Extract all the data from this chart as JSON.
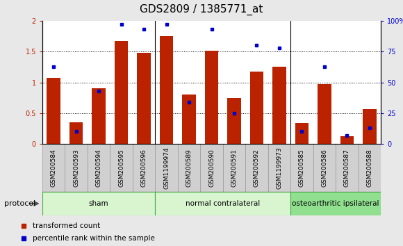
{
  "title": "GDS2809 / 1385771_at",
  "samples": [
    "GSM200584",
    "GSM200593",
    "GSM200594",
    "GSM200595",
    "GSM200596",
    "GSM1199974",
    "GSM200589",
    "GSM200590",
    "GSM200591",
    "GSM200592",
    "GSM1199973",
    "GSM200585",
    "GSM200586",
    "GSM200587",
    "GSM200588"
  ],
  "red_bars": [
    1.08,
    0.35,
    0.9,
    1.67,
    1.48,
    1.75,
    0.8,
    1.52,
    0.75,
    1.18,
    1.25,
    0.34,
    0.97,
    0.12,
    0.57
  ],
  "blue_dots_pct": [
    63,
    10,
    43,
    97,
    93,
    97,
    34,
    93,
    25,
    80,
    78,
    10,
    63,
    7,
    13
  ],
  "groups": [
    {
      "label": "sham",
      "xstart": 0,
      "xend": 5,
      "color": "#d8f5d0"
    },
    {
      "label": "normal contralateral",
      "xstart": 5,
      "xend": 11,
      "color": "#d8f5d0"
    },
    {
      "label": "osteoarthritic ipsilateral",
      "xstart": 11,
      "xend": 15,
      "color": "#90e090"
    }
  ],
  "ylim_left": [
    0,
    2.0
  ],
  "ylim_right": [
    0,
    100
  ],
  "yticks_left": [
    0,
    0.5,
    1.0,
    1.5,
    2.0
  ],
  "yticks_right": [
    0,
    25,
    50,
    75,
    100
  ],
  "ytick_labels_left": [
    "0",
    "0.5",
    "1",
    "1.5",
    "2"
  ],
  "ytick_labels_right": [
    "0",
    "25",
    "50",
    "75",
    "100%"
  ],
  "bar_color": "#bb2200",
  "dot_color": "#0000cc",
  "protocol_label": "protocol",
  "legend": [
    "transformed count",
    "percentile rank within the sample"
  ],
  "bg_color": "#e8e8e8",
  "plot_bg": "#ffffff",
  "title_fontsize": 11,
  "tick_label_fontsize": 7,
  "bar_width": 0.6,
  "xtick_bg": "#d0d0d0",
  "xtick_border": "#999999"
}
